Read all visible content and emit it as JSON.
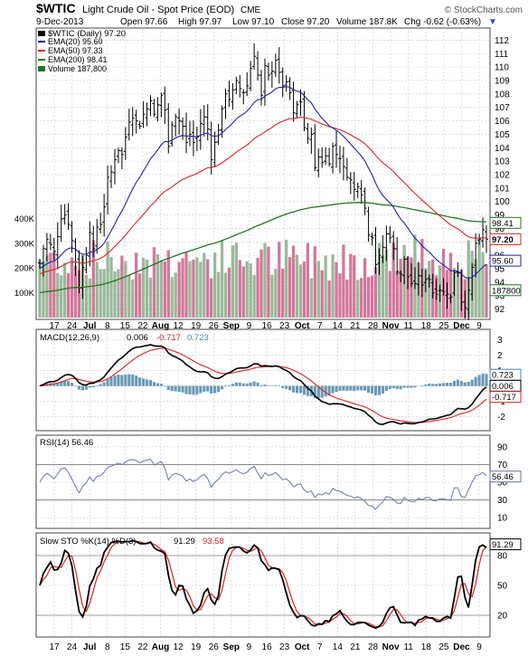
{
  "header": {
    "symbol": "$WTIC",
    "description": "Light Crude Oil - Spot Price (EOD)",
    "exchange": "CME",
    "brand": "© StockCharts.com",
    "date": "9-Dec-2013",
    "open": "Open 97.66",
    "high": "High 97.97",
    "low": "Low 97.10",
    "close": "Close 97.20",
    "volume": "Volume 187.8K",
    "chg": "Chg -0.62 (-0.63%)",
    "chg_arrow": "▼"
  },
  "legend": {
    "main": "$WTIC (Daily) 97.20",
    "ema20": "EMA(20) 95.60",
    "ema50": "EMA(50) 97.33",
    "ema200": "EMA(200) 98.41",
    "volume": "Volume 187,800"
  },
  "indicators": {
    "macd_label": "MACD(12,26,9)",
    "macd_v1": "0.006",
    "macd_v2": "-0.717",
    "macd_v3": "0.723",
    "rsi_label": "RSI(14) 56.46",
    "sto_label": "Slow STO %K(14) %D(3)",
    "sto_k": "91.29",
    "sto_d": "93.58"
  },
  "colors": {
    "price_bar": "#000000",
    "ema20": "#2222aa",
    "ema50": "#dd2222",
    "ema200": "#227722",
    "vol_up": "#9bb89b",
    "vol_down": "#d2789a",
    "macd_hist": "#6a9ab5",
    "rsi": "#6677aa",
    "grid": "#cccccc"
  },
  "chart_data": {
    "type": "ohlc",
    "x_labels": [
      "17",
      "24",
      "Jul",
      "8",
      "15",
      "22",
      "Aug",
      "12",
      "19",
      "26",
      "Sep",
      "9",
      "16",
      "23",
      "Oct",
      "7",
      "14",
      "21",
      "28",
      "Nov",
      "11",
      "18",
      "25",
      "Dec",
      "9"
    ],
    "price_axis": {
      "ticks": [
        "112",
        "111",
        "110",
        "109",
        "108",
        "107",
        "106",
        "105",
        "104",
        "103",
        "102",
        "101",
        "100",
        "99",
        "98",
        "97",
        "96",
        "95",
        "94",
        "93",
        "92"
      ],
      "range": [
        91.5,
        112.7
      ]
    },
    "volume_axis": {
      "ticks": [
        "100K",
        "200K",
        "300K",
        "400K"
      ]
    },
    "close": [
      95.4,
      96.5,
      97.2,
      96.8,
      96.3,
      97.4,
      98.7,
      99.0,
      98.3,
      97.1,
      95.5,
      93.6,
      95.1,
      96.0,
      97.7,
      96.5,
      98.1,
      98.3,
      99.6,
      101.8,
      102.2,
      103.1,
      103.8,
      103.5,
      104.8,
      105.9,
      106.2,
      106.0,
      105.6,
      106.5,
      106.9,
      107.5,
      106.5,
      107.2,
      107.9,
      106.8,
      104.1,
      105.7,
      106.3,
      106.0,
      105.6,
      104.4,
      105.0,
      104.4,
      104.8,
      105.8,
      106.3,
      105.4,
      103.1,
      104.4,
      105.3,
      106.9,
      108.0,
      107.6,
      108.3,
      109.0,
      108.4,
      108.1,
      108.6,
      109.9,
      110.8,
      109.4,
      107.9,
      110.1,
      109.4,
      109.7,
      110.5,
      109.6,
      108.6,
      108.9,
      108.1,
      106.6,
      107.2,
      107.4,
      105.5,
      104.7,
      105.0,
      102.5,
      103.3,
      102.9,
      103.4,
      102.8,
      104.1,
      103.5,
      103.2,
      102.6,
      101.8,
      101.6,
      100.9,
      101.1,
      100.5,
      99.5,
      97.5,
      97.3,
      95.3,
      96.0,
      96.6,
      97.6,
      97.3,
      96.5,
      94.8,
      94.6,
      95.7,
      94.4,
      93.9,
      93.9,
      94.5,
      93.8,
      94.2,
      94.2,
      93.2,
      93.1,
      93.4,
      93.3,
      93.1,
      92.9,
      94.7,
      94.7,
      92.5,
      92.1,
      93.4,
      95.1,
      96.9,
      97.2,
      97.9,
      97.2
    ],
    "ema20_values": "95.60 (last)",
    "ema50_values": "97.33 (last)",
    "ema200_values": "98.41 (last)",
    "price_value_tags": [
      "98.41",
      "97.20",
      "95.60",
      "187800"
    ],
    "macd": {
      "axis_ticks": [
        "3",
        "2",
        "1",
        "0",
        "-1",
        "-2"
      ],
      "range": [
        -2.8,
        3.5
      ],
      "value_tags": [
        "0.723",
        "0.006",
        "-0.717"
      ]
    },
    "rsi": {
      "axis_ticks": [
        "90",
        "70",
        "50",
        "30",
        "10"
      ],
      "range": [
        0,
        100
      ],
      "value_tags": [
        "56.46"
      ]
    },
    "sto": {
      "axis_ticks": [
        "80",
        "50",
        "20"
      ],
      "range": [
        0,
        100
      ],
      "value_tags": [
        "91.29"
      ]
    }
  }
}
